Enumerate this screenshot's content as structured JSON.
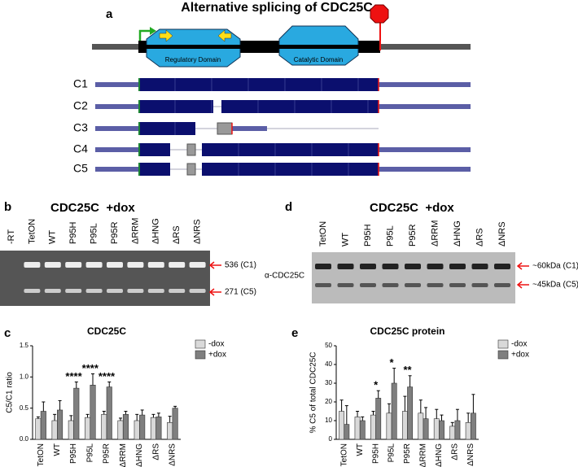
{
  "figure": {
    "panel_a": {
      "label": "a",
      "title": "Alternative splicing of CDC25C",
      "domains": [
        "Regulatory Domain",
        "Catalytic Domain"
      ],
      "isoforms": [
        "C1",
        "C2",
        "C3",
        "C4",
        "C5"
      ]
    },
    "panel_b": {
      "label": "b",
      "heading": "CDC25C  +dox",
      "lanes": [
        "-RT",
        "TetON",
        "WT",
        "P95H",
        "P95L",
        "P95R",
        "ΔRRM",
        "ΔHNG",
        "ΔRS",
        "ΔNRS"
      ],
      "bands": [
        "536 (C1)",
        "271 (C5)"
      ]
    },
    "panel_d": {
      "label": "d",
      "heading": "CDC25C  +dox",
      "lanes": [
        "TetON",
        "WT",
        "P95H",
        "P95L",
        "P95R",
        "ΔRRM",
        "ΔHNG",
        "ΔRS",
        "ΔNRS"
      ],
      "antibody": "α-CDC25C",
      "bands": [
        "~60kDa (C1)",
        "~45kDa (C5)"
      ]
    }
  },
  "chart_data": [
    {
      "type": "bar",
      "panel_label": "c",
      "title": "CDC25C",
      "y_label": "C5/C1 ratio",
      "categories": [
        "TetON",
        "WT",
        "P95H",
        "P95L",
        "P95R",
        "ΔRRM",
        "ΔHNG",
        "ΔRS",
        "ΔNRS"
      ],
      "series": [
        {
          "name": "-dox",
          "color": "#d9d9d9",
          "values": [
            0.33,
            0.3,
            0.3,
            0.35,
            0.4,
            0.3,
            0.3,
            0.35,
            0.27
          ],
          "errors": [
            0.03,
            0.1,
            0.08,
            0.05,
            0.05,
            0.04,
            0.1,
            0.05,
            0.1
          ]
        },
        {
          "name": "+dox",
          "color": "#7f7f7f",
          "values": [
            0.45,
            0.47,
            0.82,
            0.87,
            0.84,
            0.4,
            0.39,
            0.36,
            0.5
          ],
          "errors": [
            0.15,
            0.15,
            0.1,
            0.18,
            0.08,
            0.05,
            0.08,
            0.06,
            0.03
          ]
        }
      ],
      "ylim": [
        0,
        1.5
      ],
      "yticks": [
        {
          "value": 0,
          "label": "0.0"
        },
        {
          "value": 0.5,
          "label": "0.5"
        },
        {
          "value": 1,
          "label": "1.0"
        },
        {
          "value": 1.5,
          "label": "1.5"
        }
      ],
      "annotations": [
        {
          "text": "****",
          "category": "P95H"
        },
        {
          "text": "****",
          "category": "P95L"
        },
        {
          "text": "****",
          "category": "P95R"
        }
      ]
    },
    {
      "type": "bar",
      "panel_label": "e",
      "title": "CDC25C protein",
      "y_label": "% C5 of total CDC25C",
      "categories": [
        "TetON",
        "WT",
        "P95H",
        "P95L",
        "P95R",
        "ΔRRM",
        "ΔHNG",
        "ΔRS",
        "ΔNRS"
      ],
      "series": [
        {
          "name": "-dox",
          "color": "#d9d9d9",
          "values": [
            15,
            12,
            13,
            14,
            15,
            14,
            11,
            7,
            9
          ],
          "errors": [
            6,
            3,
            2,
            5,
            8,
            7,
            5,
            2,
            5
          ]
        },
        {
          "name": "+dox",
          "color": "#7f7f7f",
          "values": [
            8,
            10,
            22,
            30,
            28,
            11,
            10,
            10,
            14
          ],
          "errors": [
            10,
            2,
            4,
            8,
            6,
            6,
            3,
            6,
            10
          ]
        }
      ],
      "ylim": [
        0,
        50
      ],
      "yticks": [
        0,
        10,
        20,
        30,
        40,
        50
      ],
      "annotations": [
        {
          "text": "*",
          "category": "P95H"
        },
        {
          "text": "*",
          "category": "P95L"
        },
        {
          "text": "**",
          "category": "P95R"
        }
      ]
    }
  ]
}
